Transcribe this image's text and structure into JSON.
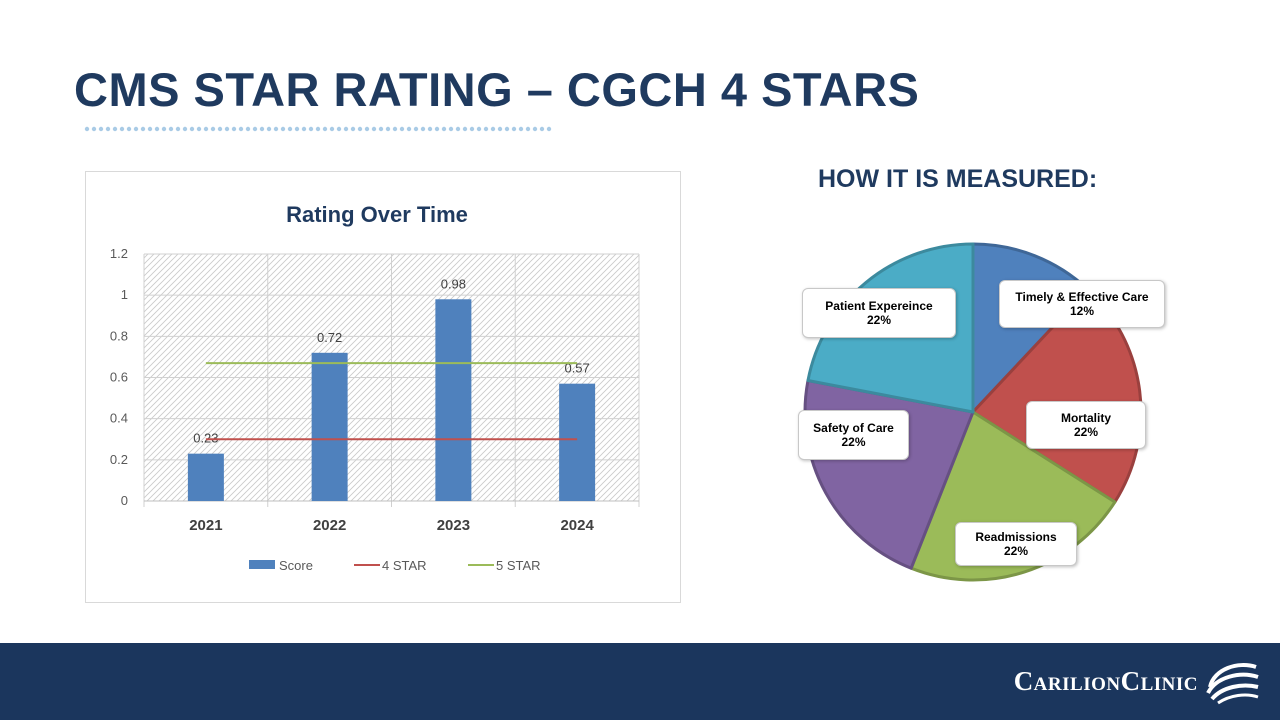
{
  "slide": {
    "title": "CMS STAR RATING – CGCH 4 STARS",
    "pie_heading": "HOW IT IS MEASURED:",
    "footer_brand": "CarilionClinic"
  },
  "colors": {
    "title": "#1f3a5f",
    "footer": "#1b365d",
    "score_bar": "#4f81bd",
    "four_star_line": "#c0504d",
    "five_star_line": "#9bbb59"
  },
  "chart_data": [
    {
      "type": "bar",
      "title": "Rating Over Time",
      "categories": [
        "2021",
        "2022",
        "2023",
        "2024"
      ],
      "series": [
        {
          "name": "Score",
          "kind": "bar",
          "values": [
            0.23,
            0.72,
            0.98,
            0.57
          ],
          "data_labels": [
            "0.23",
            "0.72",
            "0.98",
            "0.57"
          ],
          "color": "#4f81bd"
        },
        {
          "name": "4 STAR",
          "kind": "line",
          "values": [
            0.3,
            0.3,
            0.3,
            0.3
          ],
          "color": "#c0504d"
        },
        {
          "name": "5 STAR",
          "kind": "line",
          "values": [
            0.67,
            0.67,
            0.67,
            0.67
          ],
          "color": "#9bbb59"
        }
      ],
      "ylim": [
        0,
        1.2
      ],
      "yticks": [
        "0",
        "0.2",
        "0.4",
        "0.6",
        "0.8",
        "1",
        "1.2"
      ],
      "ytick_values": [
        0,
        0.2,
        0.4,
        0.6,
        0.8,
        1,
        1.2
      ],
      "grid": true,
      "legend": "bottom"
    },
    {
      "type": "pie",
      "slices": [
        {
          "label": "Timely & Effective Care",
          "value": 12,
          "pct": "12%",
          "color": "#4f81bd"
        },
        {
          "label": "Mortality",
          "value": 22,
          "pct": "22%",
          "color": "#c0504d"
        },
        {
          "label": "Readmissions",
          "value": 22,
          "pct": "22%",
          "color": "#9bbb59"
        },
        {
          "label": "Safety of Care",
          "value": 22,
          "pct": "22%",
          "color": "#8064a2"
        },
        {
          "label": "Patient Expereince",
          "value": 22,
          "pct": "22%",
          "color": "#4bacc6"
        }
      ]
    }
  ]
}
